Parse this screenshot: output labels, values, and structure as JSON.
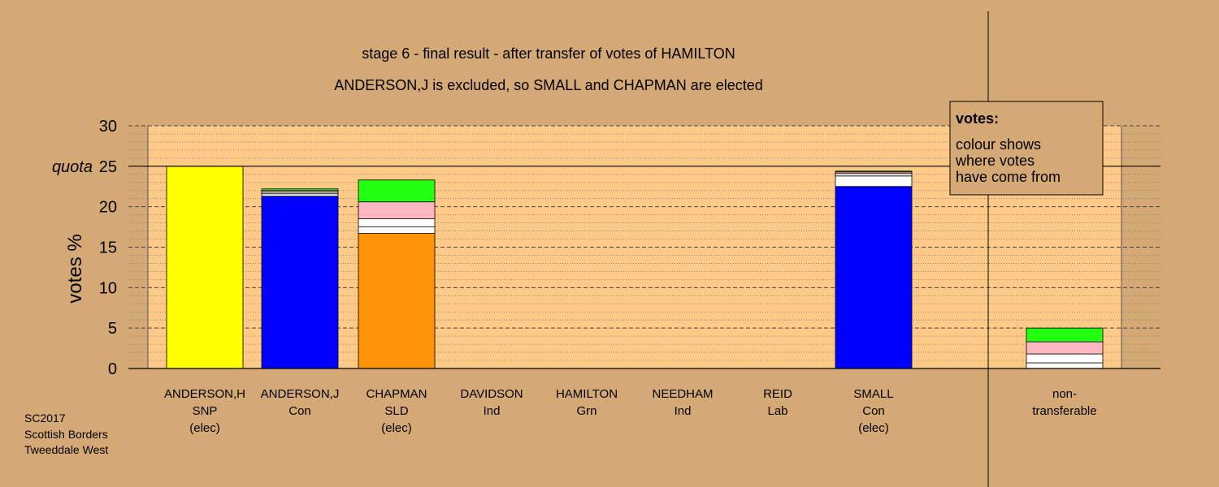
{
  "chart_data": {
    "type": "bar",
    "stacked": true,
    "title": "stage 6 - final result - after transfer of votes of HAMILTON",
    "subtitle": "ANDERSON,J is excluded, so SMALL and CHAPMAN are elected",
    "ylabel": "votes %",
    "ylim": [
      0,
      30
    ],
    "yticks": [
      0,
      5,
      10,
      15,
      20,
      25,
      30
    ],
    "quota": {
      "value": 25,
      "label": "quota"
    },
    "grid": true,
    "legend": {
      "placement": "top-right",
      "title": "votes:",
      "lines": [
        "colour shows",
        "where votes",
        "have come from"
      ]
    },
    "source_lines": [
      "SC2017",
      "Scottish Borders",
      "Tweeddale West"
    ],
    "colors": {
      "background": "#d4a976",
      "plot_area": "#ffc987",
      "SNP": "#ffff00",
      "Con": "#0000ff",
      "SLD": "#ff9408",
      "Grn": "#22ff11",
      "Lab": "#ffb6c1",
      "Ind": "#ffffff"
    },
    "categories": [
      {
        "name": "ANDERSON,H",
        "party": "SNP",
        "status": "(elec)",
        "segments": [
          {
            "value": 25.0,
            "color": "#ffff00"
          }
        ]
      },
      {
        "name": "ANDERSON,J",
        "party": "Con",
        "status": "",
        "segments": [
          {
            "value": 21.3,
            "color": "#0000ff"
          },
          {
            "value": 0.3,
            "color": "#ffffff"
          },
          {
            "value": 0.2,
            "color": "#ffffff"
          },
          {
            "value": 0.2,
            "color": "#ffb6c1"
          },
          {
            "value": 0.2,
            "color": "#22ff11"
          }
        ]
      },
      {
        "name": "CHAPMAN",
        "party": "SLD",
        "status": "(elec)",
        "segments": [
          {
            "value": 16.7,
            "color": "#ff9408"
          },
          {
            "value": 0.8,
            "color": "#ffffff"
          },
          {
            "value": 1.0,
            "color": "#ffffff"
          },
          {
            "value": 2.1,
            "color": "#ffb6c1"
          },
          {
            "value": 2.7,
            "color": "#22ff11"
          }
        ]
      },
      {
        "name": "DAVIDSON",
        "party": "Ind",
        "status": "",
        "segments": []
      },
      {
        "name": "HAMILTON",
        "party": "Grn",
        "status": "",
        "segments": []
      },
      {
        "name": "NEEDHAM",
        "party": "Ind",
        "status": "",
        "segments": []
      },
      {
        "name": "REID",
        "party": "Lab",
        "status": "",
        "segments": []
      },
      {
        "name": "SMALL",
        "party": "Con",
        "status": "(elec)",
        "segments": [
          {
            "value": 22.5,
            "color": "#0000ff"
          },
          {
            "value": 1.3,
            "color": "#ffffff"
          },
          {
            "value": 0.3,
            "color": "#ffffff"
          },
          {
            "value": 0.2,
            "color": "#ffb6c1"
          },
          {
            "value": 0.1,
            "color": "#22ff11"
          }
        ]
      }
    ],
    "non_transferable": {
      "label_lines": [
        "non-",
        "transferable"
      ],
      "segments": [
        {
          "value": 0.7,
          "color": "#ffffff"
        },
        {
          "value": 1.1,
          "color": "#ffffff"
        },
        {
          "value": 1.5,
          "color": "#ffb6c1"
        },
        {
          "value": 1.7,
          "color": "#22ff11"
        }
      ]
    }
  }
}
